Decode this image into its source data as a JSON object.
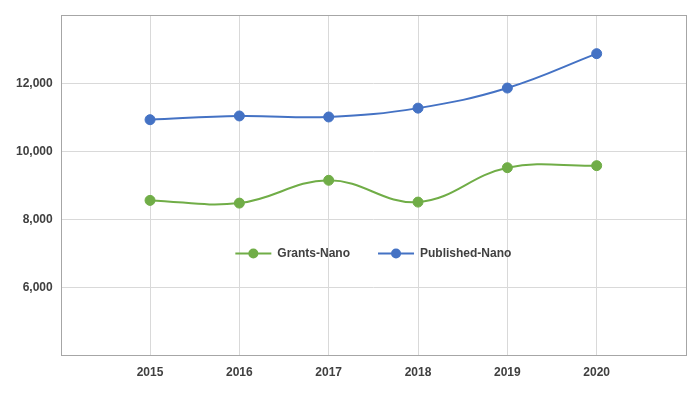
{
  "chart_data": {
    "type": "line",
    "x": [
      2015,
      2016,
      2017,
      2018,
      2019,
      2020
    ],
    "xlim": [
      2014,
      2021
    ],
    "xticks": [
      2015,
      2016,
      2017,
      2018,
      2019,
      2020
    ],
    "ylim": [
      4000,
      14000
    ],
    "yticks": [
      {
        "value": 6000,
        "label": "6,000"
      },
      {
        "value": 8000,
        "label": "8,000"
      },
      {
        "value": 10000,
        "label": "10,000"
      },
      {
        "value": 12000,
        "label": "12,000"
      }
    ],
    "grid": true,
    "legend": "center",
    "marker": "circle",
    "line_style": "smooth",
    "series": [
      {
        "name": "Grants-Nano",
        "color": "#70ad47",
        "values": [
          8560,
          8480,
          9150,
          8510,
          9520,
          9580
        ]
      },
      {
        "name": "Published-Nano",
        "color": "#4472c4",
        "values": [
          10930,
          11040,
          11010,
          11270,
          11860,
          12870
        ]
      }
    ]
  }
}
